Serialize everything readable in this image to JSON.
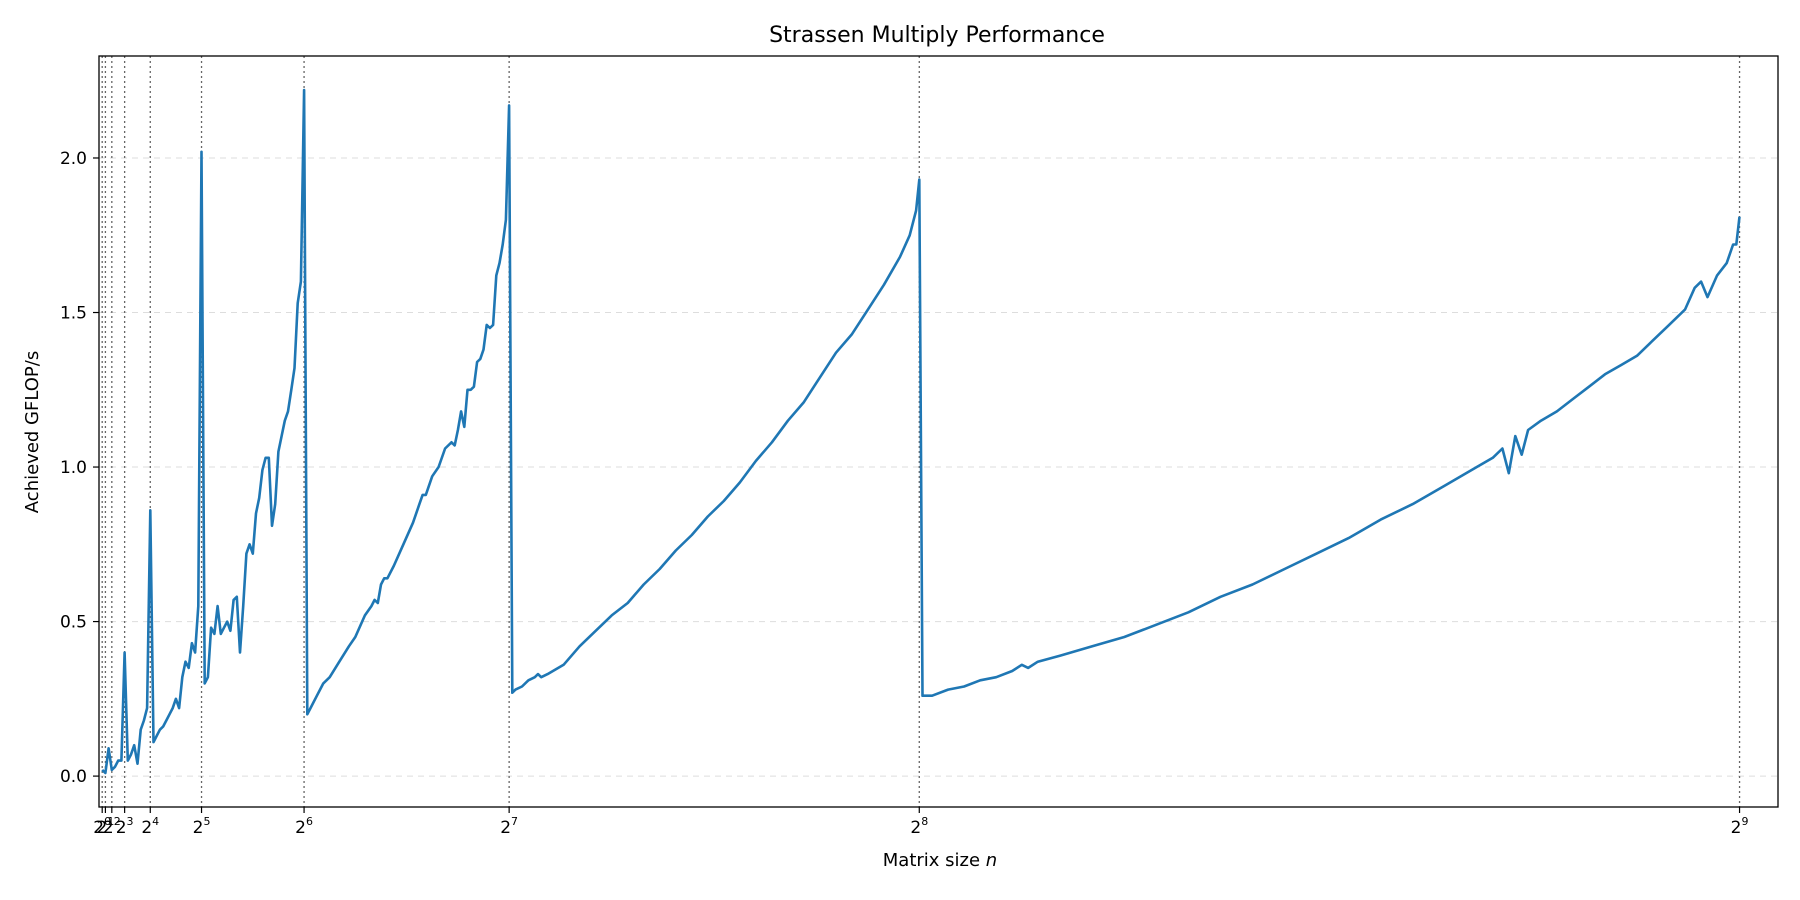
{
  "chart_data": {
    "type": "line",
    "title": "Strassen Multiply Performance",
    "xlabel_prefix": "Matrix size ",
    "xlabel_var": "n",
    "ylabel": "Achieved GFLOP/s",
    "xscale": "linear",
    "xlim": [
      0,
      524
    ],
    "ylim": [
      -0.1,
      2.33
    ],
    "grid": {
      "y": true,
      "style": "dashed"
    },
    "vlines_at": [
      1,
      2,
      4,
      8,
      16,
      32,
      64,
      128,
      256,
      512
    ],
    "x_ticks": [
      {
        "value": 1,
        "base": "2",
        "exp": "0"
      },
      {
        "value": 2,
        "base": "2",
        "exp": "1"
      },
      {
        "value": 4,
        "base": "2",
        "exp": "2"
      },
      {
        "value": 8,
        "base": "2",
        "exp": "3"
      },
      {
        "value": 16,
        "base": "2",
        "exp": "4"
      },
      {
        "value": 32,
        "base": "2",
        "exp": "5"
      },
      {
        "value": 64,
        "base": "2",
        "exp": "6"
      },
      {
        "value": 128,
        "base": "2",
        "exp": "7"
      },
      {
        "value": 256,
        "base": "2",
        "exp": "8"
      },
      {
        "value": 512,
        "base": "2",
        "exp": "9"
      }
    ],
    "y_ticks": [
      {
        "value": 0.0,
        "label": "0.0"
      },
      {
        "value": 0.5,
        "label": "0.5"
      },
      {
        "value": 1.0,
        "label": "1.0"
      },
      {
        "value": 1.5,
        "label": "1.5"
      },
      {
        "value": 2.0,
        "label": "2.0"
      }
    ],
    "series": [
      {
        "color": "#1f77b4",
        "points": [
          [
            1,
            0.02
          ],
          [
            2,
            0.01
          ],
          [
            3,
            0.09
          ],
          [
            4,
            0.02
          ],
          [
            5,
            0.03
          ],
          [
            6,
            0.05
          ],
          [
            7,
            0.05
          ],
          [
            8,
            0.4
          ],
          [
            9,
            0.05
          ],
          [
            10,
            0.07
          ],
          [
            11,
            0.1
          ],
          [
            12,
            0.04
          ],
          [
            13,
            0.15
          ],
          [
            14,
            0.18
          ],
          [
            15,
            0.22
          ],
          [
            16,
            0.86
          ],
          [
            17,
            0.11
          ],
          [
            18,
            0.13
          ],
          [
            19,
            0.15
          ],
          [
            20,
            0.16
          ],
          [
            21,
            0.18
          ],
          [
            22,
            0.2
          ],
          [
            23,
            0.22
          ],
          [
            24,
            0.25
          ],
          [
            25,
            0.22
          ],
          [
            26,
            0.32
          ],
          [
            27,
            0.37
          ],
          [
            28,
            0.35
          ],
          [
            29,
            0.43
          ],
          [
            30,
            0.4
          ],
          [
            31,
            0.55
          ],
          [
            32,
            2.02
          ],
          [
            33,
            0.3
          ],
          [
            34,
            0.32
          ],
          [
            35,
            0.48
          ],
          [
            36,
            0.46
          ],
          [
            37,
            0.55
          ],
          [
            38,
            0.46
          ],
          [
            39,
            0.48
          ],
          [
            40,
            0.5
          ],
          [
            41,
            0.47
          ],
          [
            42,
            0.57
          ],
          [
            43,
            0.58
          ],
          [
            44,
            0.4
          ],
          [
            45,
            0.55
          ],
          [
            46,
            0.72
          ],
          [
            47,
            0.75
          ],
          [
            48,
            0.72
          ],
          [
            49,
            0.85
          ],
          [
            50,
            0.9
          ],
          [
            51,
            0.99
          ],
          [
            52,
            1.03
          ],
          [
            53,
            1.03
          ],
          [
            54,
            0.81
          ],
          [
            55,
            0.88
          ],
          [
            56,
            1.05
          ],
          [
            57,
            1.1
          ],
          [
            58,
            1.15
          ],
          [
            59,
            1.18
          ],
          [
            60,
            1.25
          ],
          [
            61,
            1.32
          ],
          [
            62,
            1.53
          ],
          [
            63,
            1.6
          ],
          [
            64,
            2.22
          ],
          [
            65,
            0.2
          ],
          [
            66,
            0.22
          ],
          [
            68,
            0.26
          ],
          [
            70,
            0.3
          ],
          [
            72,
            0.32
          ],
          [
            75,
            0.37
          ],
          [
            78,
            0.42
          ],
          [
            80,
            0.45
          ],
          [
            83,
            0.52
          ],
          [
            85,
            0.55
          ],
          [
            86,
            0.57
          ],
          [
            87,
            0.56
          ],
          [
            88,
            0.62
          ],
          [
            89,
            0.64
          ],
          [
            90,
            0.64
          ],
          [
            92,
            0.68
          ],
          [
            95,
            0.75
          ],
          [
            98,
            0.82
          ],
          [
            100,
            0.88
          ],
          [
            101,
            0.91
          ],
          [
            102,
            0.91
          ],
          [
            104,
            0.97
          ],
          [
            106,
            1.0
          ],
          [
            108,
            1.06
          ],
          [
            110,
            1.08
          ],
          [
            111,
            1.07
          ],
          [
            112,
            1.12
          ],
          [
            113,
            1.18
          ],
          [
            114,
            1.13
          ],
          [
            115,
            1.25
          ],
          [
            116,
            1.25
          ],
          [
            117,
            1.26
          ],
          [
            118,
            1.34
          ],
          [
            119,
            1.35
          ],
          [
            120,
            1.38
          ],
          [
            121,
            1.46
          ],
          [
            122,
            1.45
          ],
          [
            123,
            1.46
          ],
          [
            124,
            1.62
          ],
          [
            125,
            1.66
          ],
          [
            126,
            1.72
          ],
          [
            127,
            1.8
          ],
          [
            128,
            2.17
          ],
          [
            129,
            0.27
          ],
          [
            130,
            0.28
          ],
          [
            132,
            0.29
          ],
          [
            134,
            0.31
          ],
          [
            136,
            0.32
          ],
          [
            137,
            0.33
          ],
          [
            138,
            0.32
          ],
          [
            140,
            0.33
          ],
          [
            145,
            0.36
          ],
          [
            150,
            0.42
          ],
          [
            155,
            0.47
          ],
          [
            160,
            0.52
          ],
          [
            165,
            0.56
          ],
          [
            170,
            0.62
          ],
          [
            175,
            0.67
          ],
          [
            180,
            0.73
          ],
          [
            185,
            0.78
          ],
          [
            190,
            0.84
          ],
          [
            195,
            0.89
          ],
          [
            200,
            0.95
          ],
          [
            205,
            1.02
          ],
          [
            210,
            1.08
          ],
          [
            215,
            1.15
          ],
          [
            220,
            1.21
          ],
          [
            225,
            1.29
          ],
          [
            230,
            1.37
          ],
          [
            235,
            1.43
          ],
          [
            240,
            1.51
          ],
          [
            245,
            1.59
          ],
          [
            250,
            1.68
          ],
          [
            253,
            1.75
          ],
          [
            255,
            1.83
          ],
          [
            256,
            1.93
          ],
          [
            257,
            0.26
          ],
          [
            260,
            0.26
          ],
          [
            265,
            0.28
          ],
          [
            270,
            0.29
          ],
          [
            275,
            0.31
          ],
          [
            280,
            0.32
          ],
          [
            285,
            0.34
          ],
          [
            288,
            0.36
          ],
          [
            290,
            0.35
          ],
          [
            293,
            0.37
          ],
          [
            300,
            0.39
          ],
          [
            310,
            0.42
          ],
          [
            320,
            0.45
          ],
          [
            330,
            0.49
          ],
          [
            340,
            0.53
          ],
          [
            350,
            0.58
          ],
          [
            360,
            0.62
          ],
          [
            370,
            0.67
          ],
          [
            380,
            0.72
          ],
          [
            390,
            0.77
          ],
          [
            400,
            0.83
          ],
          [
            410,
            0.88
          ],
          [
            420,
            0.94
          ],
          [
            430,
            1.0
          ],
          [
            435,
            1.03
          ],
          [
            438,
            1.06
          ],
          [
            440,
            0.98
          ],
          [
            442,
            1.1
          ],
          [
            444,
            1.04
          ],
          [
            446,
            1.12
          ],
          [
            450,
            1.15
          ],
          [
            455,
            1.18
          ],
          [
            460,
            1.22
          ],
          [
            465,
            1.26
          ],
          [
            470,
            1.3
          ],
          [
            475,
            1.33
          ],
          [
            480,
            1.36
          ],
          [
            485,
            1.41
          ],
          [
            490,
            1.46
          ],
          [
            495,
            1.51
          ],
          [
            498,
            1.58
          ],
          [
            500,
            1.6
          ],
          [
            502,
            1.55
          ],
          [
            505,
            1.62
          ],
          [
            508,
            1.66
          ],
          [
            510,
            1.72
          ],
          [
            511,
            1.72
          ],
          [
            512,
            1.81
          ]
        ]
      }
    ]
  }
}
